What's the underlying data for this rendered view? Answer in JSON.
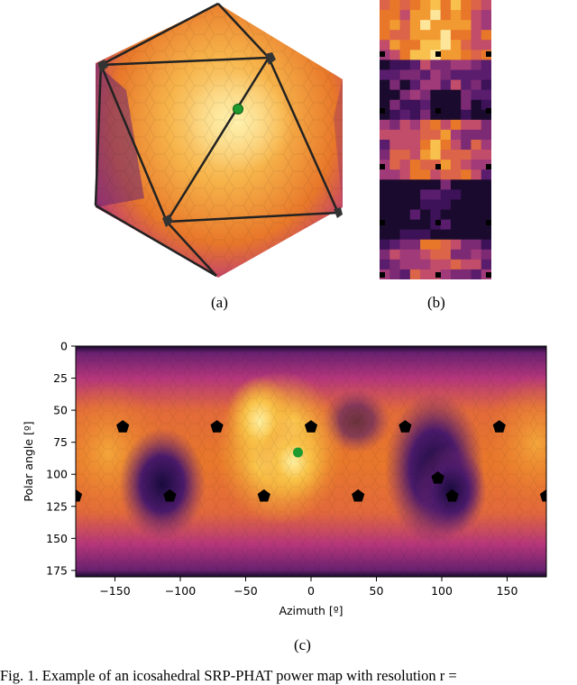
{
  "figure": {
    "panel_labels": {
      "a": "(a)",
      "b": "(b)",
      "c": "(c)"
    },
    "caption": "Fig. 1.  Example of an icosahedral SRP-PHAT power map with resolution r ="
  },
  "colors": {
    "dark": "#1a0b2e",
    "purple": "#5a1d6e",
    "mid": "#b5367a",
    "orange": "#e8772a",
    "bright": "#fde59a",
    "marker_vertex": "#000000",
    "marker_source": "#1f9a2e"
  },
  "chart_data": {
    "type": "heatmap",
    "xlabel": "Azimuth [º]",
    "ylabel": "Polar angle [º]",
    "xlim": [
      -180,
      180
    ],
    "ylim": [
      180,
      0
    ],
    "xticks": [
      -150,
      -100,
      -50,
      0,
      50,
      100,
      150
    ],
    "yticks": [
      0,
      25,
      50,
      75,
      100,
      125,
      150,
      175
    ],
    "xtick_labels": [
      "−150",
      "−100",
      "−50",
      "0",
      "50",
      "100",
      "150"
    ],
    "ytick_labels": [
      "0",
      "25",
      "50",
      "75",
      "100",
      "125",
      "150",
      "175"
    ],
    "colormap": "inferno",
    "vertex_markers": [
      {
        "azimuth": -144,
        "polar": 63
      },
      {
        "azimuth": -72,
        "polar": 63
      },
      {
        "azimuth": 0,
        "polar": 63
      },
      {
        "azimuth": 72,
        "polar": 63
      },
      {
        "azimuth": 144,
        "polar": 63
      },
      {
        "azimuth": -180,
        "polar": 117
      },
      {
        "azimuth": -108,
        "polar": 117
      },
      {
        "azimuth": -36,
        "polar": 117
      },
      {
        "azimuth": 36,
        "polar": 117
      },
      {
        "azimuth": 108,
        "polar": 117
      },
      {
        "azimuth": 180,
        "polar": 117
      },
      {
        "azimuth": 97,
        "polar": 103
      }
    ],
    "source_marker": {
      "azimuth": -10,
      "polar": 83
    }
  }
}
